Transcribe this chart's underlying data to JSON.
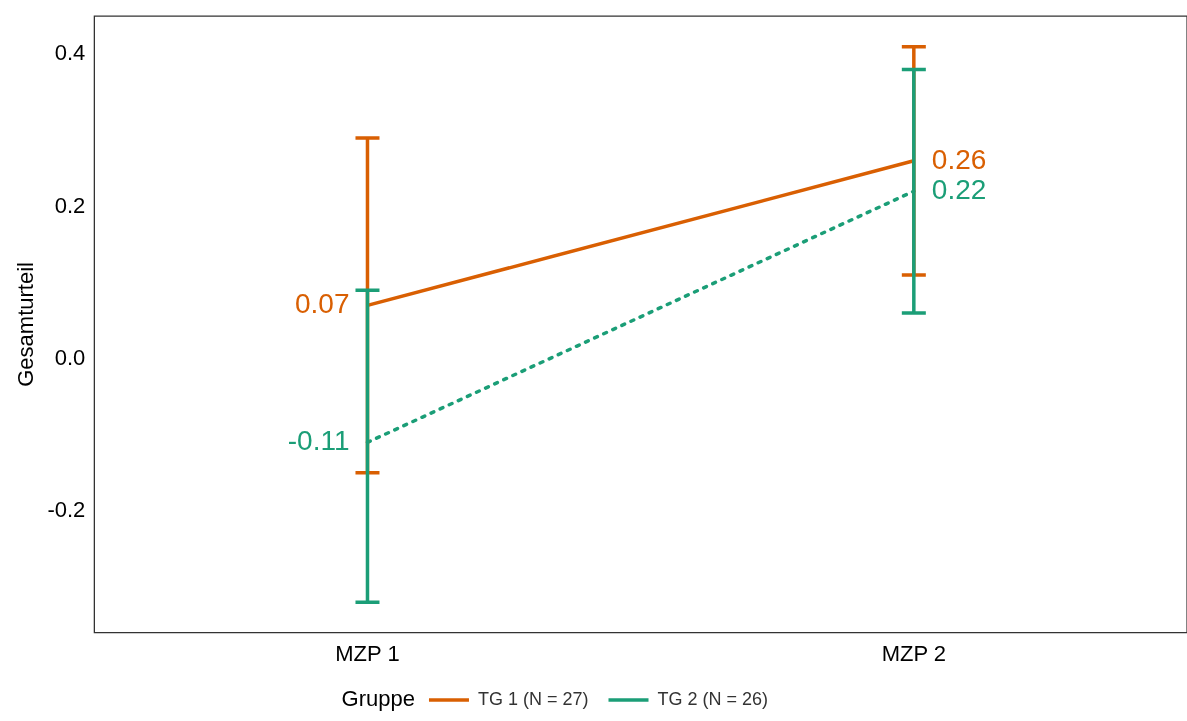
{
  "chart_data": {
    "type": "line",
    "ylabel": "Gesamturteil",
    "legend_title": "Gruppe",
    "categories": [
      "MZP 1",
      "MZP 2"
    ],
    "series": [
      {
        "name": "TG 1 (N = 27)",
        "color": "#d95f02",
        "values": [
          0.07,
          0.26
        ],
        "errors": [
          [
            -0.15,
            0.29
          ],
          [
            0.11,
            0.41
          ]
        ],
        "line_style": "solid"
      },
      {
        "name": "TG 2 (N = 26)",
        "color": "#1b9e77",
        "values": [
          -0.11,
          0.22
        ],
        "errors": [
          [
            -0.32,
            0.09
          ],
          [
            0.06,
            0.38
          ]
        ],
        "line_style": "dotted"
      }
    ],
    "ylim": [
      -0.36,
      0.45
    ],
    "yticks": [
      -0.2,
      {
        "value": 0,
        "label": "0.0"
      },
      0.2,
      0.4
    ],
    "grid": false,
    "legend": "bottom",
    "marker": "none",
    "data_labels": true
  }
}
